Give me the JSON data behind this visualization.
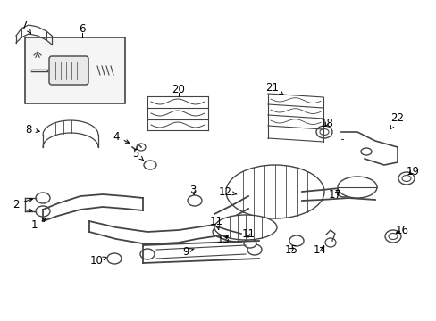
{
  "bg_color": "#ffffff",
  "line_color": "#444444",
  "text_color": "#000000",
  "fig_w": 4.89,
  "fig_h": 3.6,
  "dpi": 100,
  "font_size": 8.5
}
